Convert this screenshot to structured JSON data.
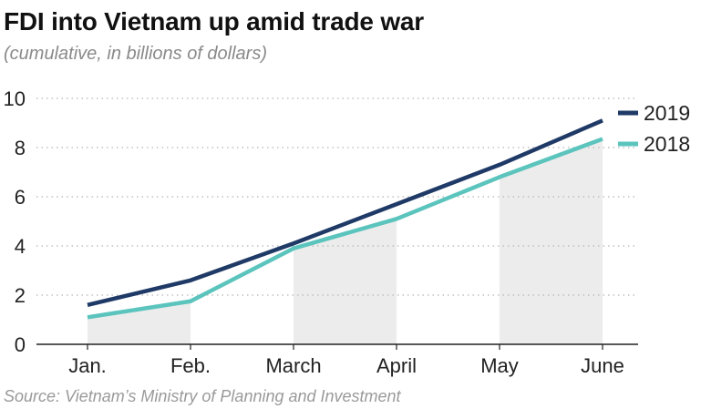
{
  "chart_data": {
    "type": "line",
    "title": "FDI into Vietnam up amid trade war",
    "subtitle": "(cumulative, in billions of dollars)",
    "source": "Source: Vietnam’s Ministry of Planning and Investment",
    "categories": [
      "Jan.",
      "Feb.",
      "March",
      "April",
      "May",
      "June"
    ],
    "yticks": [
      "0",
      "2",
      "4",
      "6",
      "8",
      "10"
    ],
    "ylim": [
      0,
      10
    ],
    "grid": "horizontal dotted",
    "legend_position": "top-right",
    "series": [
      {
        "name": "2019",
        "color": "#1f3a66",
        "values": [
          1.6,
          2.6,
          4.1,
          5.7,
          7.3,
          9.1
        ]
      },
      {
        "name": "2018",
        "color": "#5bc4bd",
        "values": [
          1.1,
          1.75,
          3.9,
          5.1,
          6.8,
          8.35
        ]
      }
    ],
    "shading_color": "#ececec"
  }
}
